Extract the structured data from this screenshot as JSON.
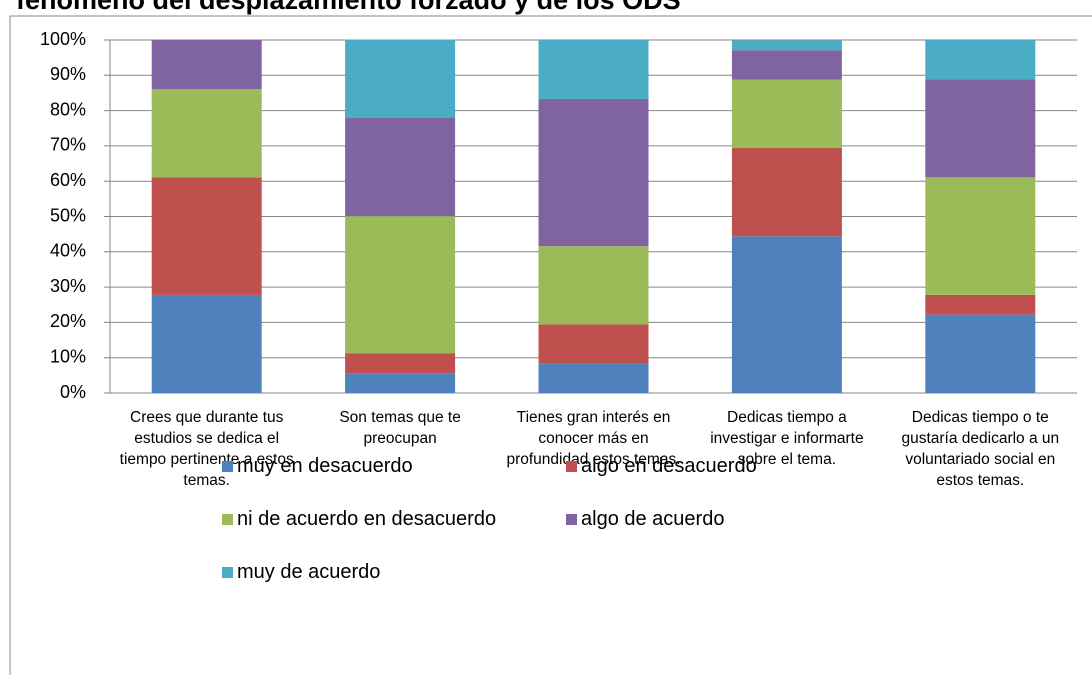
{
  "chart_data": {
    "type": "stacked_bar",
    "title": "fenómeno del desplazamiento forzado y de los ODS",
    "categories": [
      "Crees que durante tus estudios se dedica el tiempo pertinente a estos temas.",
      "Son temas que te preocupan",
      "Tienes gran interés en conocer más en profundidad estos temas.",
      "Dedicas tiempo a investigar e informarte sobre el tema.",
      "Dedicas tiempo o te gustaría dedicarlo a un voluntariado social en estos temas."
    ],
    "series": [
      {
        "name": "muy en desacuerdo",
        "color": "#4f81bd",
        "values": [
          27.8,
          5.6,
          8.3,
          44.4,
          22.2
        ]
      },
      {
        "name": "algo en desacuerdo",
        "color": "#c0504d",
        "values": [
          33.3,
          5.6,
          11.1,
          25,
          5.6
        ]
      },
      {
        "name": "ni de acuerdo en desacuerdo",
        "color": "#9bbb59",
        "values": [
          25,
          38.9,
          22.2,
          19.4,
          33.3
        ]
      },
      {
        "name": "algo de acuerdo",
        "color": "#8064a2",
        "values": [
          13.9,
          27.8,
          41.7,
          8.3,
          27.8
        ]
      },
      {
        "name": "muy de acuerdo",
        "color": "#4bacc6",
        "values": [
          0,
          22.2,
          16.7,
          2.8,
          11.1
        ]
      }
    ],
    "ylim": [
      0,
      100
    ],
    "yticks": [
      {
        "value": 0,
        "label": "0%"
      },
      {
        "value": 10,
        "label": "10%"
      },
      {
        "value": 20,
        "label": "20%"
      },
      {
        "value": 30,
        "label": "30%"
      },
      {
        "value": 40,
        "label": "40%"
      },
      {
        "value": 50,
        "label": "50%"
      },
      {
        "value": 60,
        "label": "60%"
      },
      {
        "value": 70,
        "label": "70%"
      },
      {
        "value": 80,
        "label": "80%"
      },
      {
        "value": 90,
        "label": "90%"
      },
      {
        "value": 100,
        "label": "100%"
      }
    ],
    "grid": true,
    "legend": "bottom"
  }
}
